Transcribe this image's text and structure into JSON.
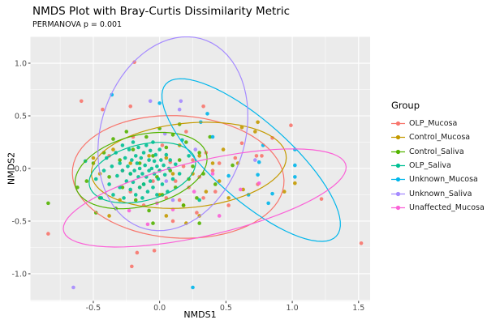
{
  "title": "NMDS Plot with Bray-Curtis Dissimilarity Metric",
  "subtitle": "PERMANOVA p = 0.001",
  "axes": {
    "x_label": "NMDS1",
    "y_label": "NMDS2",
    "x_ticks": [
      -0.5,
      0.0,
      0.5,
      1.0,
      1.5
    ],
    "x_tick_labels": [
      "-0.5",
      "0.0",
      "0.5",
      "1.0",
      "1.5"
    ],
    "y_ticks": [
      -1.0,
      -0.5,
      0.0,
      0.5,
      1.0
    ],
    "y_tick_labels": [
      "-1.0",
      "-0.5",
      "0.0",
      "0.5",
      "1.0"
    ]
  },
  "legend": {
    "title": "Group",
    "position": "right"
  },
  "style": {
    "panel_bg": "#EBEBEB",
    "grid_color": "#FFFFFF",
    "tick_color": "#333333",
    "tick_label_color": "#4D4D4D",
    "point_radius": 2.3
  },
  "chart_data": {
    "type": "scatter",
    "title": "NMDS Plot with Bray-Curtis Dissimilarity Metric",
    "subtitle": "PERMANOVA p = 0.001",
    "xlabel": "NMDS1",
    "ylabel": "NMDS2",
    "xlim": [
      -0.974,
      1.587
    ],
    "ylim": [
      -1.258,
      1.254
    ],
    "grid": true,
    "legend_position": "right",
    "series": [
      {
        "name": "OLP_Mucosa",
        "color": "#F8766D",
        "ellipse": {
          "cx": 0.14,
          "cy": -0.08,
          "rx": 0.8,
          "ry": 0.58,
          "angle": -6
        },
        "points": [
          [
            -0.19,
            1.01
          ],
          [
            -0.59,
            0.64
          ],
          [
            -0.43,
            0.56
          ],
          [
            -0.22,
            0.59
          ],
          [
            0.33,
            0.59
          ],
          [
            0.99,
            0.41
          ],
          [
            0.62,
            0.24
          ],
          [
            0.73,
            0.12
          ],
          [
            0.77,
            0.12
          ],
          [
            0.74,
            -0.15
          ],
          [
            1.22,
            -0.29
          ],
          [
            1.52,
            -0.71
          ],
          [
            -0.84,
            -0.62
          ],
          [
            -0.17,
            -0.8
          ],
          [
            -0.04,
            -0.78
          ],
          [
            -0.21,
            -0.93
          ],
          [
            0.85,
            0.29
          ],
          [
            -0.38,
            0.12
          ],
          [
            -0.28,
            -0.02
          ],
          [
            -0.22,
            -0.22
          ],
          [
            -0.12,
            -0.35
          ],
          [
            -0.05,
            -0.12
          ],
          [
            0.0,
            -0.02
          ],
          [
            0.05,
            -0.28
          ],
          [
            0.08,
            0.06
          ],
          [
            0.12,
            -0.12
          ],
          [
            0.15,
            -0.3
          ],
          [
            0.18,
            0.02
          ],
          [
            0.22,
            -0.18
          ],
          [
            0.25,
            0.08
          ],
          [
            0.3,
            -0.08
          ],
          [
            0.33,
            -0.28
          ],
          [
            0.35,
            0.15
          ],
          [
            0.4,
            -0.02
          ],
          [
            0.42,
            -0.22
          ],
          [
            0.45,
            0.05
          ],
          [
            0.28,
            -0.42
          ],
          [
            0.1,
            -0.5
          ],
          [
            -0.2,
            0.3
          ],
          [
            0.02,
            0.22
          ],
          [
            0.52,
            -0.35
          ],
          [
            0.57,
            0.1
          ],
          [
            0.2,
            0.35
          ]
        ]
      },
      {
        "name": "Control_Mucosa",
        "color": "#C49A00",
        "ellipse": {
          "cx": 0.22,
          "cy": 0.03,
          "rx": 0.74,
          "ry": 0.4,
          "angle": 8
        },
        "points": [
          [
            0.74,
            0.44
          ],
          [
            0.72,
            0.35
          ],
          [
            0.62,
            0.39
          ],
          [
            0.59,
            0.05
          ],
          [
            0.94,
            -0.22
          ],
          [
            1.02,
            -0.14
          ],
          [
            -0.5,
            0.1
          ],
          [
            -0.45,
            -0.05
          ],
          [
            -0.35,
            0.18
          ],
          [
            -0.3,
            -0.3
          ],
          [
            -0.22,
            0.05
          ],
          [
            -0.15,
            -0.18
          ],
          [
            -0.08,
            0.12
          ],
          [
            0.0,
            -0.25
          ],
          [
            0.05,
            0.1
          ],
          [
            0.1,
            -0.05
          ],
          [
            0.15,
            0.22
          ],
          [
            0.18,
            -0.35
          ],
          [
            0.25,
            -0.05
          ],
          [
            0.3,
            0.12
          ],
          [
            0.35,
            -0.22
          ],
          [
            0.4,
            0.05
          ],
          [
            0.45,
            -0.12
          ],
          [
            0.48,
            0.18
          ],
          [
            0.52,
            -0.28
          ],
          [
            0.3,
            -0.45
          ],
          [
            -0.38,
            -0.45
          ],
          [
            0.05,
            -0.45
          ],
          [
            0.63,
            -0.2
          ],
          [
            0.2,
            -0.52
          ]
        ]
      },
      {
        "name": "Control_Saliva",
        "color": "#53B400",
        "ellipse": {
          "cx": -0.14,
          "cy": -0.02,
          "rx": 0.52,
          "ry": 0.33,
          "angle": 22
        },
        "points": [
          [
            -0.84,
            -0.33
          ],
          [
            -0.55,
            -0.12
          ],
          [
            -0.5,
            0.05
          ],
          [
            -0.45,
            -0.28
          ],
          [
            -0.42,
            0.15
          ],
          [
            -0.38,
            -0.08
          ],
          [
            -0.35,
            0.28
          ],
          [
            -0.33,
            -0.38
          ],
          [
            -0.3,
            0.08
          ],
          [
            -0.28,
            -0.18
          ],
          [
            -0.25,
            0.35
          ],
          [
            -0.22,
            -0.05
          ],
          [
            -0.2,
            0.18
          ],
          [
            -0.18,
            -0.3
          ],
          [
            -0.15,
            0.05
          ],
          [
            -0.12,
            -0.15
          ],
          [
            -0.1,
            0.3
          ],
          [
            -0.08,
            -0.4
          ],
          [
            -0.05,
            0.12
          ],
          [
            -0.02,
            -0.08
          ],
          [
            0.0,
            0.38
          ],
          [
            0.02,
            -0.25
          ],
          [
            0.05,
            0.2
          ],
          [
            0.08,
            -0.02
          ],
          [
            0.1,
            0.32
          ],
          [
            0.12,
            -0.18
          ],
          [
            0.15,
            0.08
          ],
          [
            0.18,
            -0.35
          ],
          [
            0.2,
            0.25
          ],
          [
            0.22,
            -0.1
          ],
          [
            0.25,
            0.02
          ],
          [
            0.28,
            -0.28
          ],
          [
            0.3,
            0.15
          ],
          [
            0.33,
            -0.05
          ],
          [
            0.55,
            0.03
          ],
          [
            -0.62,
            -0.18
          ],
          [
            -0.48,
            -0.42
          ],
          [
            0.38,
            0.3
          ],
          [
            0.42,
            -0.15
          ],
          [
            0.15,
            0.42
          ],
          [
            0.3,
            -0.52
          ],
          [
            -0.05,
            -0.52
          ]
        ]
      },
      {
        "name": "OLP_Saliva",
        "color": "#00C094",
        "ellipse": {
          "cx": -0.13,
          "cy": -0.04,
          "rx": 0.42,
          "ry": 0.26,
          "angle": 22
        },
        "points": [
          [
            -0.42,
            -0.02
          ],
          [
            -0.4,
            0.1
          ],
          [
            -0.38,
            -0.15
          ],
          [
            -0.36,
            0.02
          ],
          [
            -0.35,
            -0.25
          ],
          [
            -0.33,
            0.15
          ],
          [
            -0.32,
            -0.07
          ],
          [
            -0.3,
            0.05
          ],
          [
            -0.3,
            -0.18
          ],
          [
            -0.28,
            0.22
          ],
          [
            -0.28,
            -0.02
          ],
          [
            -0.27,
            -0.28
          ],
          [
            -0.26,
            0.1
          ],
          [
            -0.25,
            -0.12
          ],
          [
            -0.24,
            0.02
          ],
          [
            -0.23,
            0.18
          ],
          [
            -0.22,
            -0.2
          ],
          [
            -0.22,
            -0.05
          ],
          [
            -0.21,
            0.08
          ],
          [
            -0.2,
            0.25
          ],
          [
            -0.2,
            -0.13
          ],
          [
            -0.19,
            -0.02
          ],
          [
            -0.18,
            0.12
          ],
          [
            -0.18,
            -0.25
          ],
          [
            -0.17,
            0.05
          ],
          [
            -0.16,
            -0.08
          ],
          [
            -0.16,
            0.2
          ],
          [
            -0.15,
            -0.18
          ],
          [
            -0.15,
            0.0
          ],
          [
            -0.14,
            0.1
          ],
          [
            -0.13,
            -0.28
          ],
          [
            -0.13,
            -0.05
          ],
          [
            -0.12,
            0.15
          ],
          [
            -0.12,
            -0.15
          ],
          [
            -0.11,
            0.03
          ],
          [
            -0.1,
            0.22
          ],
          [
            -0.1,
            -0.08
          ],
          [
            -0.09,
            -0.22
          ],
          [
            -0.08,
            0.08
          ],
          [
            -0.08,
            -0.02
          ],
          [
            -0.07,
            0.17
          ],
          [
            -0.07,
            -0.12
          ],
          [
            -0.06,
            0.0
          ],
          [
            -0.05,
            0.25
          ],
          [
            -0.05,
            -0.18
          ],
          [
            -0.04,
            0.07
          ],
          [
            -0.04,
            -0.05
          ],
          [
            -0.03,
            0.13
          ],
          [
            -0.02,
            -0.25
          ],
          [
            -0.02,
            0.02
          ],
          [
            -0.01,
            -0.1
          ],
          [
            0.0,
            0.18
          ],
          [
            0.0,
            -0.02
          ],
          [
            0.01,
            0.08
          ],
          [
            0.02,
            -0.15
          ],
          [
            0.03,
            0.03
          ],
          [
            0.04,
            -0.06
          ],
          [
            0.05,
            0.13
          ],
          [
            0.06,
            -0.22
          ],
          [
            0.07,
            0.0
          ],
          [
            0.08,
            0.08
          ],
          [
            0.1,
            -0.1
          ],
          [
            0.12,
            0.04
          ],
          [
            -0.44,
            -0.28
          ],
          [
            -0.56,
            0.07
          ],
          [
            0.15,
            -0.05
          ],
          [
            0.17,
            0.27
          ],
          [
            0.3,
            -0.3
          ],
          [
            0.22,
            0.12
          ],
          [
            -0.48,
            -0.1
          ]
        ]
      },
      {
        "name": "Unknown_Mucosa",
        "color": "#00B6EB",
        "ellipse": {
          "cx": 0.69,
          "cy": 0.08,
          "rx": 0.97,
          "ry": 0.33,
          "angle": -50
        },
        "points": [
          [
            -0.36,
            0.7
          ],
          [
            0.0,
            0.62
          ],
          [
            0.36,
            0.52
          ],
          [
            0.31,
            0.44
          ],
          [
            0.78,
            0.22
          ],
          [
            1.02,
            0.18
          ],
          [
            0.75,
            0.06
          ],
          [
            1.02,
            0.03
          ],
          [
            0.52,
            -0.07
          ],
          [
            0.74,
            -0.06
          ],
          [
            1.02,
            -0.08
          ],
          [
            0.67,
            -0.25
          ],
          [
            0.85,
            -0.24
          ],
          [
            0.82,
            -0.33
          ],
          [
            0.25,
            -1.13
          ],
          [
            0.4,
            0.3
          ]
        ]
      },
      {
        "name": "Unknown_Saliva",
        "color": "#A58AFF",
        "ellipse": {
          "cx": 0.1,
          "cy": 0.33,
          "rx": 0.55,
          "ry": 0.93,
          "angle": -10
        },
        "points": [
          [
            -0.07,
            0.64
          ],
          [
            0.16,
            0.64
          ],
          [
            0.15,
            0.56
          ],
          [
            0.04,
            0.33
          ],
          [
            0.27,
            0.18
          ],
          [
            0.72,
            0.08
          ],
          [
            0.05,
            -0.12
          ],
          [
            0.1,
            -0.3
          ],
          [
            -0.65,
            -1.13
          ]
        ]
      },
      {
        "name": "Unaffected_Mucosa",
        "color": "#FB61D7",
        "ellipse": {
          "cx": 0.34,
          "cy": -0.28,
          "rx": 1.11,
          "ry": 0.35,
          "angle": 17
        },
        "points": [
          [
            -0.23,
            -0.4
          ],
          [
            -0.09,
            -0.53
          ],
          [
            -0.02,
            -0.33
          ],
          [
            0.1,
            -0.39
          ],
          [
            0.26,
            -0.22
          ],
          [
            0.45,
            -0.45
          ],
          [
            0.61,
            -0.2
          ],
          [
            0.75,
            -0.14
          ],
          [
            0.4,
            -0.05
          ]
        ]
      }
    ]
  }
}
